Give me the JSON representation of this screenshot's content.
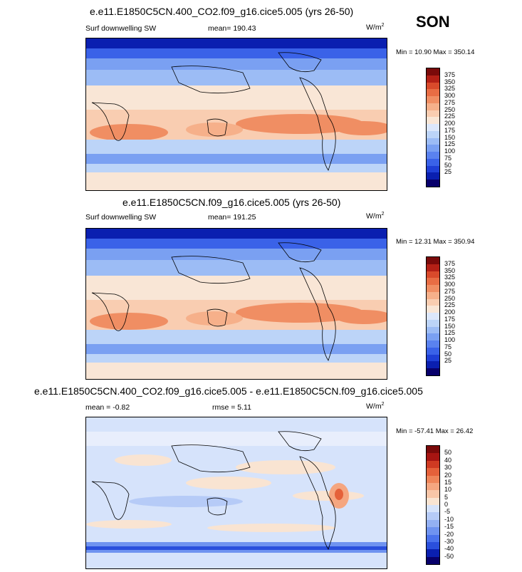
{
  "season": "SON",
  "colors": {
    "abs_scale": [
      "#08006b",
      "#0a1fb0",
      "#1f3fd6",
      "#3a62e8",
      "#5a82ef",
      "#7aa0f2",
      "#9cbcf5",
      "#bcd4f8",
      "#dce7fb",
      "#f9e6d6",
      "#f9cdb1",
      "#f6b08a",
      "#f08e63",
      "#e86d44",
      "#d94a2b",
      "#b42016",
      "#7a0a0a"
    ],
    "diff_scale": [
      "#08006b",
      "#0a1fb0",
      "#2a4fdc",
      "#4a72ec",
      "#6f93f0",
      "#93b0f3",
      "#b6cbf7",
      "#d6e3fb",
      "#f9e4d2",
      "#f8c6a8",
      "#f5a680",
      "#ef8559",
      "#e5613a",
      "#cf3a22",
      "#a71512",
      "#7a0a0a"
    ]
  },
  "panels": [
    {
      "title": "e.e11.E1850C5CN.400_CO2.f09_g16.cice5.005 (yrs 26-50)",
      "left": "Surf downwelling SW",
      "mean": "mean= 190.43",
      "units": "W/m",
      "units_sup": "2",
      "minmax": "Min =  10.90 Max = 350.14",
      "levels": [
        "375",
        "350",
        "325",
        "300",
        "275",
        "250",
        "225",
        "200",
        "175",
        "150",
        "125",
        "100",
        "75",
        "50",
        "25"
      ]
    },
    {
      "title": "e.e11.E1850C5CN.f09_g16.cice5.005 (yrs 26-50)",
      "left": "Surf downwelling SW",
      "mean": "mean= 191.25",
      "units": "W/m",
      "units_sup": "2",
      "minmax": "Min =  12.31 Max = 350.94",
      "levels": [
        "375",
        "350",
        "325",
        "300",
        "275",
        "250",
        "225",
        "200",
        "175",
        "150",
        "125",
        "100",
        "75",
        "50",
        "25"
      ]
    },
    {
      "title": "e.e11.E1850C5CN.400_CO2.f09_g16.cice5.005 - e.e11.E1850C5CN.f09_g16.cice5.005",
      "left": "mean =  -0.82",
      "mean": "rmse =   5.11",
      "units": "W/m",
      "units_sup": "2",
      "minmax": "Min = -57.41 Max =  26.42",
      "levels": [
        "50",
        "40",
        "30",
        "20",
        "15",
        "10",
        "5",
        "0",
        "-5",
        "-10",
        "-15",
        "-20",
        "-30",
        "-40",
        "-50"
      ]
    }
  ]
}
